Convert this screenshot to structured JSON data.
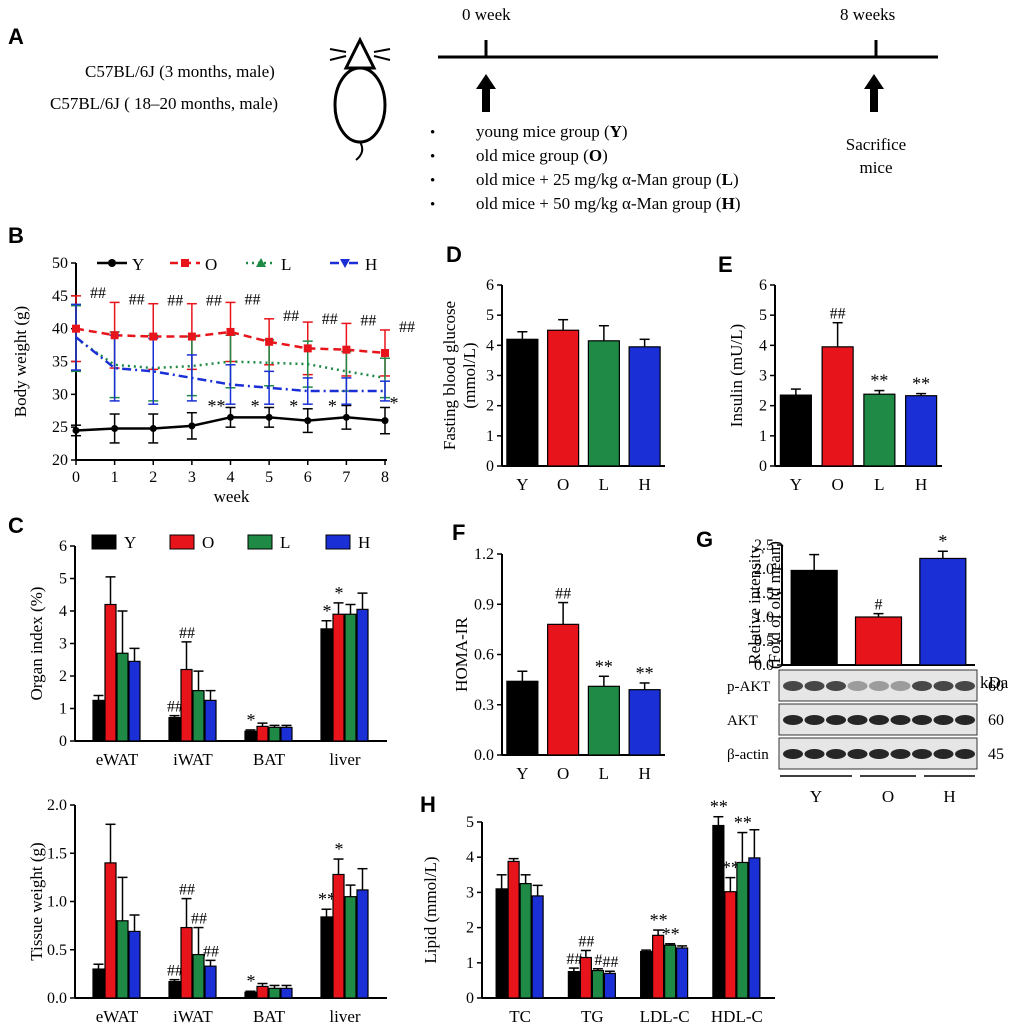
{
  "colors": {
    "Y": "#000000",
    "O": "#e8141b",
    "L": "#1f8a45",
    "H": "#1a2fd6"
  },
  "A": {
    "panel": "A",
    "strains": [
      "C57BL/6J (3 months, male)",
      "C57BL/6J ( 18–20 months, male)"
    ],
    "t0": "0 week",
    "t8": "8 weeks",
    "sacrifice": [
      "Sacrifice",
      "mice"
    ],
    "groups": [
      {
        "text": "young mice group (",
        "code": "Y",
        "end": ")"
      },
      {
        "text": "old mice group (",
        "code": "O",
        "end": ")"
      },
      {
        "text": "old mice + 25 mg/kg α-Man group (",
        "code": "L",
        "end": ")"
      },
      {
        "text": "old mice + 50 mg/kg α-Man group (",
        "code": "H",
        "end": ")"
      }
    ]
  },
  "chart_data": [
    {
      "panel": "B",
      "type": "line",
      "xlabel": "week",
      "ylabel": "Body weight (g)",
      "ylim": [
        20,
        50
      ],
      "yticks": [
        20,
        25,
        30,
        35,
        40,
        45,
        50
      ],
      "x": [
        0,
        1,
        2,
        3,
        4,
        5,
        6,
        7,
        8
      ],
      "series": [
        {
          "name": "Y",
          "values": [
            24.5,
            24.8,
            24.8,
            25.2,
            26.5,
            26.5,
            26.0,
            26.5,
            26.0
          ],
          "err": [
            0.8,
            2.2,
            2.2,
            2.0,
            1.5,
            1.5,
            1.8,
            1.8,
            2.0
          ]
        },
        {
          "name": "O",
          "values": [
            40.0,
            39.0,
            38.8,
            38.8,
            39.5,
            38.0,
            37.0,
            36.8,
            36.3
          ],
          "err": [
            5.0,
            5.0,
            5.0,
            5.0,
            4.5,
            3.5,
            4.0,
            4.0,
            3.5
          ]
        },
        {
          "name": "L",
          "values": [
            38.5,
            34.5,
            34.0,
            34.3,
            35.0,
            34.8,
            34.6,
            33.5,
            32.5
          ],
          "err": [
            5.0,
            5.0,
            5.0,
            4.5,
            4.0,
            3.5,
            3.5,
            3.0,
            3.0
          ]
        },
        {
          "name": "H",
          "values": [
            38.7,
            34.0,
            33.5,
            32.5,
            31.5,
            31.0,
            30.5,
            30.5,
            30.5
          ],
          "err": [
            5.0,
            5.0,
            5.0,
            3.5,
            3.0,
            2.5,
            2.0,
            2.0,
            1.5
          ]
        }
      ],
      "annotations": {
        "top": [
          "##",
          "##",
          "##",
          "##",
          "##",
          "##",
          "##",
          "##",
          "##"
        ],
        "h_stars": [
          "",
          "",
          "",
          "",
          "**",
          "*",
          "*",
          "*",
          "*"
        ]
      }
    },
    {
      "panel": "C",
      "type": "bar",
      "ylabel": "Organ index (%)",
      "ylim": [
        0,
        6
      ],
      "yticks": [
        0,
        1,
        2,
        3,
        4,
        5,
        6
      ],
      "categories": [
        "eWAT",
        "iWAT",
        "BAT",
        "liver"
      ],
      "series": [
        {
          "name": "Y",
          "values": [
            1.25,
            0.72,
            0.3,
            3.45
          ],
          "err": [
            0.15,
            0.06,
            0.04,
            0.25
          ]
        },
        {
          "name": "O",
          "values": [
            4.2,
            2.2,
            0.45,
            3.9
          ],
          "err": [
            0.85,
            0.85,
            0.1,
            0.35
          ]
        },
        {
          "name": "L",
          "values": [
            2.7,
            1.55,
            0.42,
            3.9
          ],
          "err": [
            1.3,
            0.6,
            0.06,
            0.3
          ]
        },
        {
          "name": "H",
          "values": [
            2.45,
            1.25,
            0.42,
            4.05
          ],
          "err": [
            0.4,
            0.3,
            0.06,
            0.5
          ]
        }
      ],
      "annotations": [
        [
          "",
          "##",
          "*",
          "*"
        ],
        [
          "",
          "##",
          "",
          "*"
        ],
        [
          "",
          "",
          "",
          ""
        ],
        [
          "",
          "",
          "",
          ""
        ]
      ]
    },
    {
      "panel": "C2",
      "type": "bar",
      "ylabel": "Tissue weight (g)",
      "ylim": [
        0,
        2.0
      ],
      "yticks": [
        "0.0",
        "0.5",
        "1.0",
        "1.5",
        "2.0"
      ],
      "categories": [
        "eWAT",
        "iWAT",
        "BAT",
        "liver"
      ],
      "series": [
        {
          "name": "Y",
          "values": [
            0.3,
            0.17,
            0.06,
            0.84
          ],
          "err": [
            0.05,
            0.02,
            0.01,
            0.08
          ]
        },
        {
          "name": "O",
          "values": [
            1.4,
            0.73,
            0.12,
            1.28
          ],
          "err": [
            0.4,
            0.3,
            0.03,
            0.16
          ]
        },
        {
          "name": "L",
          "values": [
            0.8,
            0.45,
            0.1,
            1.05
          ],
          "err": [
            0.45,
            0.28,
            0.03,
            0.12
          ]
        },
        {
          "name": "H",
          "values": [
            0.69,
            0.33,
            0.1,
            1.12
          ],
          "err": [
            0.17,
            0.06,
            0.03,
            0.22
          ]
        }
      ],
      "annotations": [
        [
          "",
          "##",
          "*",
          "**"
        ],
        [
          "",
          "##",
          "",
          "*"
        ],
        [
          "",
          "##",
          "",
          ""
        ],
        [
          "",
          "##",
          "",
          ""
        ]
      ]
    },
    {
      "panel": "D",
      "type": "bar",
      "ylabel": [
        "Fasting blood glucose",
        "(mmol/L)"
      ],
      "ylim": [
        0,
        6
      ],
      "yticks": [
        0,
        1,
        2,
        3,
        4,
        5,
        6
      ],
      "categories": [
        "Y",
        "O",
        "L",
        "H"
      ],
      "values": [
        4.2,
        4.5,
        4.15,
        3.95
      ],
      "err": [
        0.25,
        0.35,
        0.5,
        0.25
      ],
      "annotations": [
        "",
        "",
        "",
        ""
      ]
    },
    {
      "panel": "E",
      "type": "bar",
      "ylabel": "Insulin (mU/L)",
      "ylim": [
        0,
        6
      ],
      "yticks": [
        0,
        1,
        2,
        3,
        4,
        5,
        6
      ],
      "categories": [
        "Y",
        "O",
        "L",
        "H"
      ],
      "values": [
        2.35,
        3.95,
        2.38,
        2.33
      ],
      "err": [
        0.2,
        0.8,
        0.12,
        0.07
      ],
      "annotations": [
        "",
        "##",
        "**",
        "**"
      ]
    },
    {
      "panel": "F",
      "type": "bar",
      "ylabel": "HOMA-IR",
      "ylim": [
        0,
        1.2
      ],
      "yticks": [
        "0.0",
        "0.3",
        "0.6",
        "0.9",
        "1.2"
      ],
      "categories": [
        "Y",
        "O",
        "L",
        "H"
      ],
      "values": [
        0.44,
        0.78,
        0.41,
        0.39
      ],
      "err": [
        0.06,
        0.13,
        0.06,
        0.04
      ],
      "annotations": [
        "",
        "##",
        "**",
        "**"
      ]
    },
    {
      "panel": "G",
      "type": "bar",
      "ylabel": [
        "Relative intensity",
        "(Fold of old mean)"
      ],
      "ylim": [
        0,
        2.5
      ],
      "yticks": [
        "0.0",
        "0.5",
        "1.0",
        "1.5",
        "2.0",
        "2.5"
      ],
      "categories": [
        "Y",
        "O",
        "H"
      ],
      "values": [
        1.97,
        1.0,
        2.22
      ],
      "err": [
        0.33,
        0.07,
        0.15
      ],
      "annotations": [
        "",
        "#",
        "*"
      ],
      "blot": {
        "unit": "kDa",
        "bands": [
          {
            "name": "p-AKT",
            "kda": "60"
          },
          {
            "name": "AKT",
            "kda": "60"
          },
          {
            "name": "β-actin",
            "kda": "45"
          }
        ]
      }
    },
    {
      "panel": "H",
      "type": "bar",
      "ylabel": "Lipid (mmol/L)",
      "ylim": [
        0,
        5
      ],
      "yticks": [
        0,
        1,
        2,
        3,
        4,
        5
      ],
      "categories": [
        "TC",
        "TG",
        "LDL-C",
        "HDL-C"
      ],
      "series": [
        {
          "name": "Y",
          "values": [
            3.1,
            0.75,
            1.32,
            4.9
          ],
          "err": [
            0.4,
            0.1,
            0.04,
            0.25
          ]
        },
        {
          "name": "O",
          "values": [
            3.88,
            1.15,
            1.78,
            3.02
          ],
          "err": [
            0.08,
            0.2,
            0.15,
            0.4
          ]
        },
        {
          "name": "L",
          "values": [
            3.25,
            0.78,
            1.5,
            3.85
          ],
          "err": [
            0.25,
            0.05,
            0.04,
            0.85
          ]
        },
        {
          "name": "H",
          "values": [
            2.9,
            0.7,
            1.42,
            3.98
          ],
          "err": [
            0.3,
            0.06,
            0.06,
            0.8
          ]
        }
      ],
      "annotations": [
        [
          "",
          "##",
          "",
          "**"
        ],
        [
          "",
          "##",
          "**",
          "**"
        ],
        [
          "",
          "#",
          "**",
          "**"
        ],
        [
          "",
          "##",
          "",
          ""
        ]
      ]
    }
  ]
}
